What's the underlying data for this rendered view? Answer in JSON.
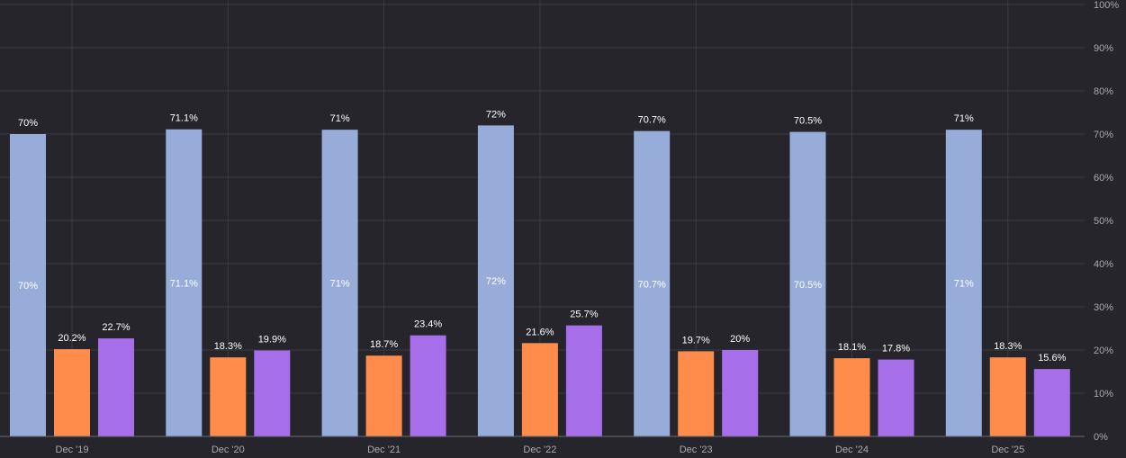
{
  "chart_data": {
    "type": "bar",
    "categories": [
      "Dec '19",
      "Dec '20",
      "Dec '21",
      "Dec '22",
      "Dec '23",
      "Dec '24",
      "Dec '25"
    ],
    "series": [
      {
        "color": "#97acd9",
        "values": [
          70,
          71.1,
          71,
          72,
          70.7,
          70.5,
          71
        ],
        "labels": [
          "70%",
          "71.1%",
          "71%",
          "72%",
          "70.7%",
          "70.5%",
          "71%"
        ],
        "inner_label": true
      },
      {
        "color": "#ff8c4b",
        "values": [
          20.2,
          18.3,
          18.7,
          21.6,
          19.7,
          18.1,
          18.3
        ],
        "labels": [
          "20.2%",
          "18.3%",
          "18.7%",
          "21.6%",
          "19.7%",
          "18.1%",
          "18.3%"
        ]
      },
      {
        "color": "#a66ee8",
        "values": [
          22.7,
          19.9,
          23.4,
          25.7,
          20,
          17.8,
          15.6
        ],
        "labels": [
          "22.7%",
          "19.9%",
          "23.4%",
          "25.7%",
          "20%",
          "17.8%",
          "15.6%"
        ]
      }
    ],
    "ylim": [
      0,
      100
    ],
    "yticks": [
      "0%",
      "10%",
      "20%",
      "30%",
      "40%",
      "50%",
      "60%",
      "70%",
      "80%",
      "90%",
      "100%"
    ],
    "y_axis_position": "right",
    "grid": true
  },
  "colors": {
    "background": "#25252b",
    "grid": "#3a3a42",
    "baseline": "#6a6a72"
  }
}
